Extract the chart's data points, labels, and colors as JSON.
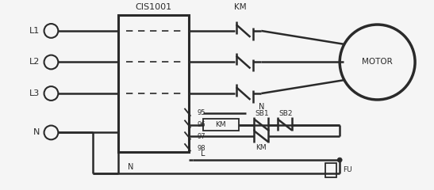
{
  "bg_color": "#f5f5f5",
  "line_color": "#2a2a2a",
  "fig_width": 5.47,
  "fig_height": 2.4,
  "dpi": 100,
  "box_label": "CIS1001",
  "motor_label": "MOTOR",
  "km_label": "KM",
  "fu_label": "FU",
  "n_label": "N",
  "l_label": "L",
  "sb1_label": "SB1",
  "sb2_label": "SB2",
  "term_labels": [
    "L1",
    "L2",
    "L3",
    "N"
  ],
  "pin_labels": [
    "95",
    "96",
    "97",
    "98"
  ]
}
